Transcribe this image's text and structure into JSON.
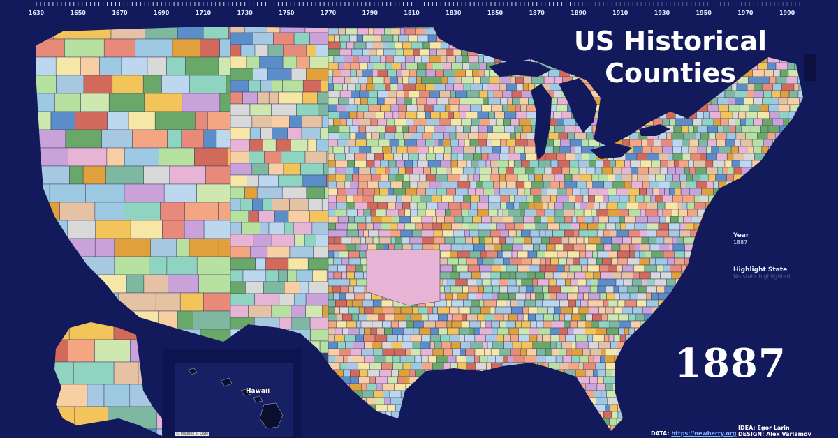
{
  "title": {
    "line1": "US Historical",
    "line2": "Counties"
  },
  "timeline": {
    "labels": [
      "1630",
      "1650",
      "1670",
      "1690",
      "1710",
      "1730",
      "1750",
      "1770",
      "1790",
      "1810",
      "1830",
      "1850",
      "1870",
      "1890",
      "1910",
      "1930",
      "1950",
      "1970",
      "1990"
    ],
    "start": 1630,
    "end": 1997,
    "current": 1887
  },
  "panel": {
    "year_label": "Year",
    "year_value": "1887",
    "highlight_label": "Highlight State",
    "highlight_value": "No state highlighted"
  },
  "big_year": "1887",
  "credits": {
    "data_label": "DATA:",
    "data_link": "https://newberry.org",
    "idea": "IDEA: Egor Larin",
    "design": "DESIGN: Alex Varlamov"
  },
  "inset": {
    "hawaii_label": "Hawaii",
    "attribution": "© Mapbox © OSM"
  },
  "colors": {
    "background": "#131a5c",
    "palette": [
      "#8fd3c1",
      "#f4a582",
      "#e7b4d6",
      "#bdd7ee",
      "#f6e7a6",
      "#b7e1a1",
      "#d9d9d9",
      "#e88a7a",
      "#9ec9e2",
      "#f2c45a",
      "#c8a2d9",
      "#7fb8a0",
      "#f7cfa3",
      "#a6c8e0",
      "#e6c2a5",
      "#d26a5b",
      "#5b8ec9",
      "#6aa86a",
      "#e0a13c",
      "#cfe8b0"
    ]
  }
}
